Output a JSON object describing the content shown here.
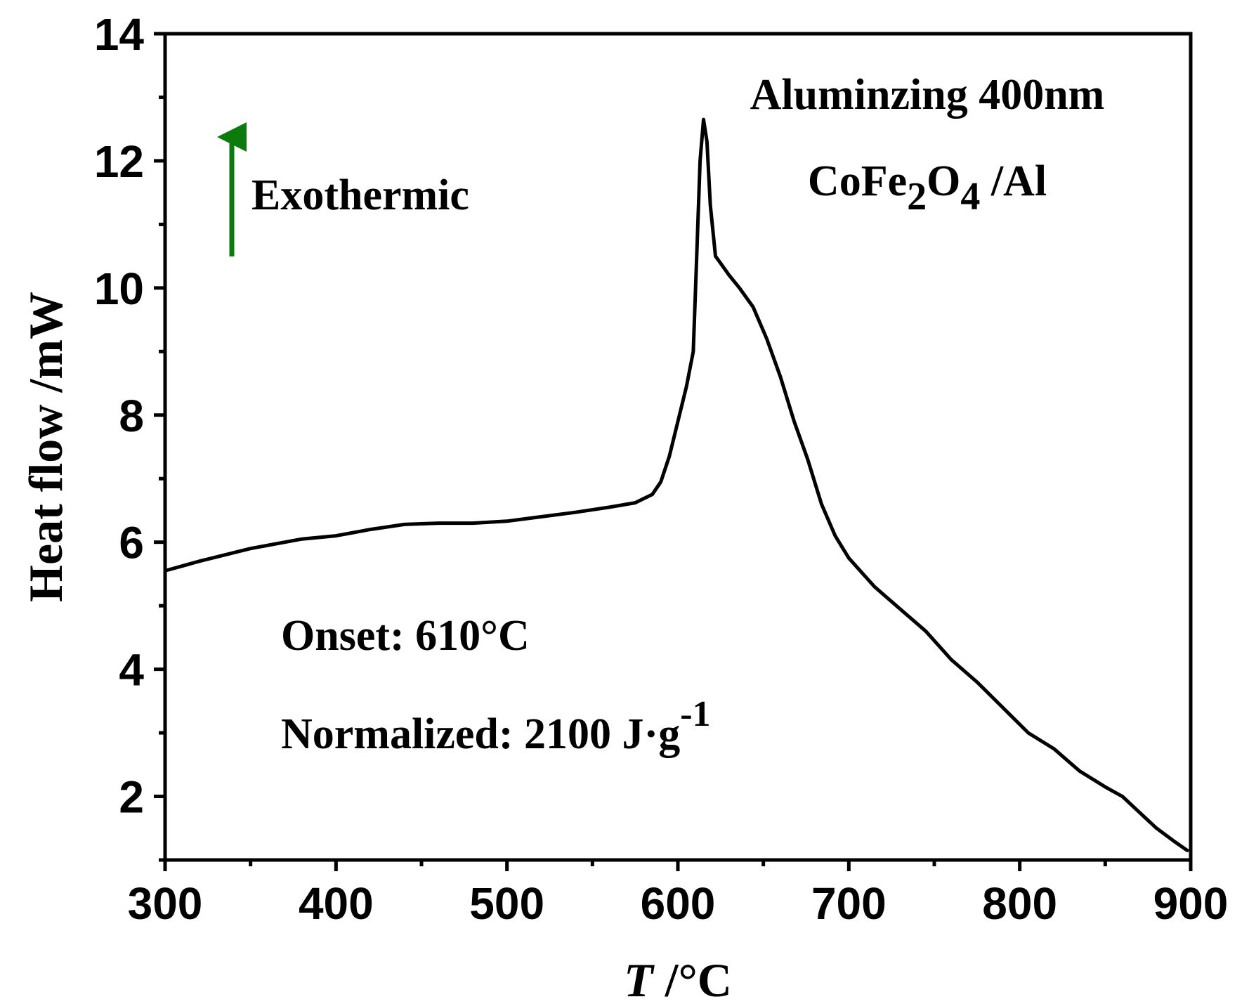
{
  "chart_data": {
    "type": "line",
    "title": "",
    "xlabel": "T /°C",
    "xlabel_symbol": "T",
    "xlabel_unit": " /°C",
    "ylabel": "Heat flow /mW",
    "xlim": [
      300,
      900
    ],
    "ylim": [
      1,
      14
    ],
    "x_ticks": [
      300,
      400,
      500,
      600,
      700,
      800,
      900
    ],
    "y_ticks": [
      2,
      4,
      6,
      8,
      10,
      12,
      14
    ],
    "x_minor_step": 50,
    "y_minor_step": 1,
    "grid": false,
    "series": [
      {
        "name": "Aluminzing 400nm CoFe2O4 /Al",
        "color": "#000000",
        "x": [
          300,
          320,
          350,
          380,
          400,
          420,
          440,
          460,
          480,
          500,
          520,
          540,
          560,
          575,
          585,
          590,
          595,
          600,
          605,
          609,
          611,
          613,
          615,
          617,
          619,
          622,
          626,
          630,
          636,
          644,
          652,
          660,
          668,
          676,
          684,
          692,
          700,
          715,
          730,
          745,
          760,
          775,
          790,
          805,
          820,
          835,
          850,
          860,
          870,
          880,
          890,
          898
        ],
        "y": [
          5.55,
          5.7,
          5.9,
          6.05,
          6.1,
          6.2,
          6.28,
          6.3,
          6.3,
          6.33,
          6.4,
          6.47,
          6.55,
          6.62,
          6.75,
          6.95,
          7.35,
          7.9,
          8.45,
          9.0,
          10.5,
          12.0,
          12.65,
          12.3,
          11.3,
          10.5,
          10.35,
          10.2,
          10.0,
          9.7,
          9.2,
          8.6,
          7.9,
          7.3,
          6.6,
          6.1,
          5.75,
          5.3,
          4.95,
          4.6,
          4.15,
          3.8,
          3.4,
          3.0,
          2.75,
          2.4,
          2.15,
          2.0,
          1.75,
          1.5,
          1.3,
          1.15
        ]
      }
    ],
    "annotations": {
      "exothermic": "Exothermic",
      "exothermic_arrow_color": "#0d7a0d",
      "sample_line1": "Aluminzing 400nm",
      "sample_line2_prefix": "CoFe",
      "sample_line2_sub1": "2",
      "sample_line2_mid": "O",
      "sample_line2_sub2": "4",
      "sample_line2_suffix": " /Al",
      "onset": "Onset: 610°C",
      "normalized_prefix": "Normalized: 2100 J·g",
      "normalized_sup": "-1"
    }
  }
}
